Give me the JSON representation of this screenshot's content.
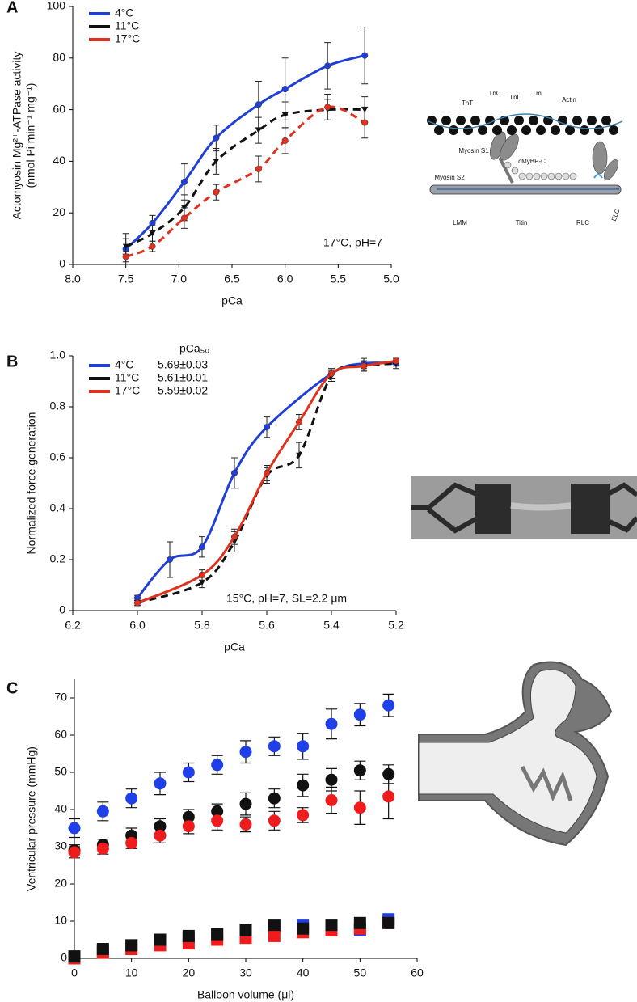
{
  "chart_data": [
    {
      "type": "line",
      "label": "A",
      "ylabel": [
        "Actomyosin Mg²⁺-ATPase activity",
        "(nmol Pi min⁻¹ mg⁻¹)"
      ],
      "xlabel": "pCa",
      "annotation": "17°C, pH=7",
      "x": [
        7.5,
        7.25,
        6.95,
        6.65,
        6.25,
        6.0,
        5.6,
        5.25
      ],
      "xlim": [
        8.0,
        5.0
      ],
      "xticks": [
        {
          "value": 8,
          "label": "8.0"
        },
        7.5,
        {
          "value": 7,
          "label": "7.0"
        },
        6.5,
        {
          "value": 6,
          "label": "6.0"
        },
        5.5,
        {
          "value": 5,
          "label": "5.0"
        }
      ],
      "ylim": [
        0,
        100
      ],
      "yticks": [
        0,
        20,
        40,
        60,
        80,
        100
      ],
      "series": [
        {
          "name": "4°C",
          "color": "#1f3fd6",
          "marker": "circle",
          "dash": false,
          "values": [
            6,
            16,
            32,
            49,
            62,
            68,
            77,
            81
          ],
          "errors": [
            6,
            3,
            7,
            5,
            9,
            12,
            9,
            11
          ]
        },
        {
          "name": "11°C",
          "color": "#111111",
          "marker": "triangle",
          "dash": true,
          "values": [
            7,
            12,
            22,
            40,
            52,
            58,
            60,
            60
          ],
          "errors": [
            3,
            3,
            5,
            5,
            5,
            5,
            4,
            5
          ]
        },
        {
          "name": "17°C",
          "color": "#e0301e",
          "marker": "circle",
          "dash": true,
          "values": [
            3,
            7,
            18,
            28,
            37,
            48,
            61,
            55
          ],
          "errors": [
            2,
            2,
            4,
            3,
            5,
            5,
            5,
            6
          ]
        }
      ]
    },
    {
      "type": "line",
      "label": "B",
      "ylabel": [
        "Normalized force generation"
      ],
      "xlabel": "pCa",
      "annotation": "15°C, pH=7, SL=2.2 μm",
      "legend_title": "pCa₅₀",
      "xlim": [
        6.2,
        5.2
      ],
      "xticks": [
        6.2,
        {
          "value": 6,
          "label": "6.0"
        },
        5.8,
        5.6,
        5.4,
        5.2
      ],
      "ylim": [
        0,
        1
      ],
      "yticks": [
        0,
        0.2,
        0.4,
        0.6,
        0.8,
        {
          "value": 1,
          "label": "1.0"
        }
      ],
      "series": [
        {
          "name": "4°C",
          "pca50": "5.69±0.03",
          "color": "#1f3fd6",
          "marker": "circle",
          "dash": false,
          "x": [
            6.0,
            5.9,
            5.8,
            5.7,
            5.6,
            5.4,
            5.3,
            5.2
          ],
          "values": [
            0.05,
            0.2,
            0.25,
            0.54,
            0.72,
            0.93,
            0.97,
            0.97
          ],
          "errors": [
            0.01,
            0.07,
            0.04,
            0.06,
            0.04,
            0.02,
            0.02,
            0.01
          ]
        },
        {
          "name": "11°C",
          "pca50": "5.61±0.01",
          "color": "#111111",
          "marker": "triangle",
          "dash": true,
          "x": [
            6.0,
            5.8,
            5.7,
            5.6,
            5.5,
            5.4,
            5.3,
            5.2
          ],
          "values": [
            0.03,
            0.11,
            0.27,
            0.53,
            0.61,
            0.92,
            0.96,
            0.97
          ],
          "errors": [
            0.01,
            0.02,
            0.04,
            0.03,
            0.05,
            0.02,
            0.02,
            0.02
          ]
        },
        {
          "name": "17°C",
          "pca50": "5.59±0.02",
          "color": "#e0301e",
          "marker": "circle",
          "dash": false,
          "x": [
            6.0,
            5.8,
            5.7,
            5.6,
            5.5,
            5.4,
            5.3,
            5.2
          ],
          "values": [
            0.03,
            0.14,
            0.29,
            0.54,
            0.74,
            0.93,
            0.96,
            0.98
          ],
          "errors": [
            0.01,
            0.02,
            0.03,
            0.03,
            0.03,
            0.02,
            0.02,
            0.01
          ]
        }
      ]
    },
    {
      "type": "scatter",
      "label": "C",
      "ylabel": [
        "Ventricular pressure (mmHg)"
      ],
      "xlabel": "Balloon volume (μl)",
      "x": [
        0,
        5,
        10,
        15,
        20,
        25,
        30,
        35,
        40,
        45,
        50,
        55
      ],
      "xlim": [
        0,
        60
      ],
      "xticks": [
        0,
        10,
        20,
        30,
        40,
        50,
        60
      ],
      "ylim": [
        0,
        75
      ],
      "yticks": [
        0,
        10,
        20,
        30,
        40,
        50,
        60,
        70
      ],
      "series": [
        {
          "color": "#1f3fe8",
          "marker": "circle",
          "values": [
            35,
            39.5,
            43,
            47,
            50,
            52,
            55.5,
            57,
            57,
            63,
            65.5,
            68
          ],
          "errors": [
            2.5,
            2.5,
            2.5,
            3,
            2.5,
            2.5,
            3,
            2.5,
            3.5,
            4,
            3,
            3
          ]
        },
        {
          "color": "#111111",
          "marker": "circle",
          "values": [
            29,
            30.5,
            33,
            35.5,
            38,
            39.5,
            41.5,
            43,
            46.5,
            48,
            50.5,
            49.5
          ],
          "errors": [
            1.5,
            1.5,
            2,
            2,
            2,
            2,
            3,
            2.5,
            3,
            3,
            2.5,
            2.5
          ]
        },
        {
          "color": "#ee1c1c",
          "marker": "circle",
          "values": [
            28.5,
            29.5,
            31,
            33,
            35.5,
            37,
            36,
            37,
            38.5,
            42.5,
            40.5,
            43.5
          ],
          "errors": [
            1.5,
            1.5,
            1.5,
            2,
            2,
            2.5,
            2,
            2.5,
            2,
            3.5,
            4.5,
            6
          ]
        },
        {
          "color": "#1f3fe8",
          "marker": "square",
          "values": [
            0.5,
            2,
            3.5,
            4.5,
            5.5,
            6.5,
            7,
            8.5,
            9,
            8.5,
            7.5,
            10.5
          ]
        },
        {
          "color": "#ee1c1c",
          "marker": "square",
          "values": [
            0,
            1.5,
            2.5,
            3.5,
            4,
            5,
            5.5,
            6,
            7,
            7.5,
            8,
            9.5
          ]
        },
        {
          "color": "#111111",
          "marker": "square",
          "values": [
            0.5,
            2.5,
            3.5,
            5,
            6,
            6.5,
            7.5,
            9,
            8,
            9,
            9.5,
            9.5
          ]
        }
      ]
    }
  ],
  "illustrations": {
    "sarcomere": {
      "labels": [
        "TnT",
        "TnC",
        "TnI",
        "Tm",
        "Actin",
        "Myosin S1",
        "cMyBP-C",
        "Myosin S2",
        "LMM",
        "Titin",
        "RLC",
        "ELC"
      ]
    }
  }
}
